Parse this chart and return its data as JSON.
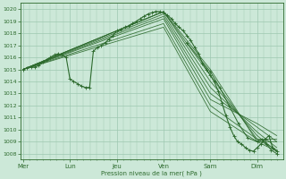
{
  "bg_color": "#cce8d8",
  "grid_color": "#9dc8b0",
  "line_color": "#2d6a2d",
  "ylabel": "Pression niveau de la mer( hPa )",
  "ylim": [
    1007.5,
    1020.5
  ],
  "yticks": [
    1008,
    1009,
    1010,
    1011,
    1012,
    1013,
    1014,
    1015,
    1016,
    1017,
    1018,
    1019,
    1020
  ],
  "day_labels": [
    "Mer",
    "Lun",
    "Jeu",
    "Ven",
    "Sam",
    "Dim"
  ],
  "day_positions": [
    0,
    1,
    2,
    3,
    4,
    5
  ],
  "xlim": [
    -0.05,
    5.55
  ],
  "main_line": {
    "x": [
      0,
      0.08,
      0.17,
      0.25,
      0.33,
      0.42,
      0.5,
      0.58,
      0.67,
      0.75,
      0.83,
      0.92,
      1.0,
      1.08,
      1.17,
      1.25,
      1.33,
      1.42,
      1.5,
      1.58,
      1.67,
      1.75,
      1.83,
      1.92,
      2.0,
      2.08,
      2.17,
      2.25,
      2.33,
      2.42,
      2.5,
      2.58,
      2.67,
      2.75,
      2.83,
      2.92,
      3.0,
      3.08,
      3.17,
      3.25,
      3.33,
      3.42,
      3.5,
      3.58,
      3.67,
      3.75,
      3.83,
      3.92,
      4.0,
      4.08,
      4.17,
      4.25,
      4.33,
      4.42,
      4.5,
      4.58,
      4.67,
      4.75,
      4.83,
      4.92,
      5.0,
      5.08,
      5.17,
      5.25,
      5.33,
      5.42
    ],
    "y": [
      1015.0,
      1015.1,
      1015.2,
      1015.2,
      1015.3,
      1015.6,
      1015.8,
      1016.0,
      1016.2,
      1016.3,
      1016.2,
      1016.0,
      1014.2,
      1014.0,
      1013.8,
      1013.6,
      1013.5,
      1013.5,
      1016.5,
      1016.8,
      1017.0,
      1017.2,
      1017.5,
      1017.8,
      1018.2,
      1018.3,
      1018.5,
      1018.6,
      1018.8,
      1019.0,
      1019.2,
      1019.4,
      1019.6,
      1019.7,
      1019.8,
      1019.8,
      1019.7,
      1019.5,
      1019.2,
      1018.8,
      1018.5,
      1018.2,
      1017.8,
      1017.4,
      1016.8,
      1016.3,
      1015.5,
      1015.0,
      1014.5,
      1014.0,
      1013.2,
      1012.2,
      1011.2,
      1010.2,
      1009.5,
      1009.0,
      1008.8,
      1008.5,
      1008.3,
      1008.2,
      1008.5,
      1008.8,
      1009.2,
      1009.5,
      1008.5,
      1008.2
    ]
  },
  "fan_lines": [
    {
      "x": [
        0,
        3.0,
        4.0,
        5.0,
        5.42
      ],
      "y": [
        1015.0,
        1019.8,
        1015.0,
        1009.0,
        1008.2
      ]
    },
    {
      "x": [
        0,
        3.0,
        4.0,
        5.0,
        5.42
      ],
      "y": [
        1015.0,
        1019.8,
        1014.5,
        1009.2,
        1008.3
      ]
    },
    {
      "x": [
        0,
        3.0,
        4.0,
        5.0,
        5.42
      ],
      "y": [
        1015.0,
        1019.8,
        1014.0,
        1009.5,
        1008.2
      ]
    },
    {
      "x": [
        0,
        3.0,
        4.0,
        5.0,
        5.42
      ],
      "y": [
        1015.0,
        1019.6,
        1013.5,
        1009.8,
        1008.5
      ]
    },
    {
      "x": [
        0,
        3.0,
        4.0,
        5.0,
        5.42
      ],
      "y": [
        1015.0,
        1019.4,
        1013.0,
        1010.2,
        1009.0
      ]
    },
    {
      "x": [
        0,
        3.0,
        4.0,
        5.0,
        5.42
      ],
      "y": [
        1015.0,
        1019.2,
        1012.5,
        1010.5,
        1009.5
      ]
    },
    {
      "x": [
        0,
        3.0,
        4.0,
        5.0,
        5.42
      ],
      "y": [
        1015.0,
        1018.8,
        1012.0,
        1009.2,
        1009.2
      ]
    },
    {
      "x": [
        0,
        3.0,
        4.0,
        5.0,
        5.42
      ],
      "y": [
        1015.0,
        1018.5,
        1011.5,
        1009.0,
        1009.0
      ]
    }
  ],
  "sam_line": {
    "x": [
      3.5,
      4.0,
      4.2,
      4.4,
      4.6,
      4.8,
      5.0,
      5.1,
      5.2,
      5.3,
      5.42
    ],
    "y": [
      1017.2,
      1014.8,
      1013.5,
      1012.0,
      1010.5,
      1009.3,
      1009.0,
      1009.2,
      1008.8,
      1008.3,
      1008.0
    ]
  }
}
